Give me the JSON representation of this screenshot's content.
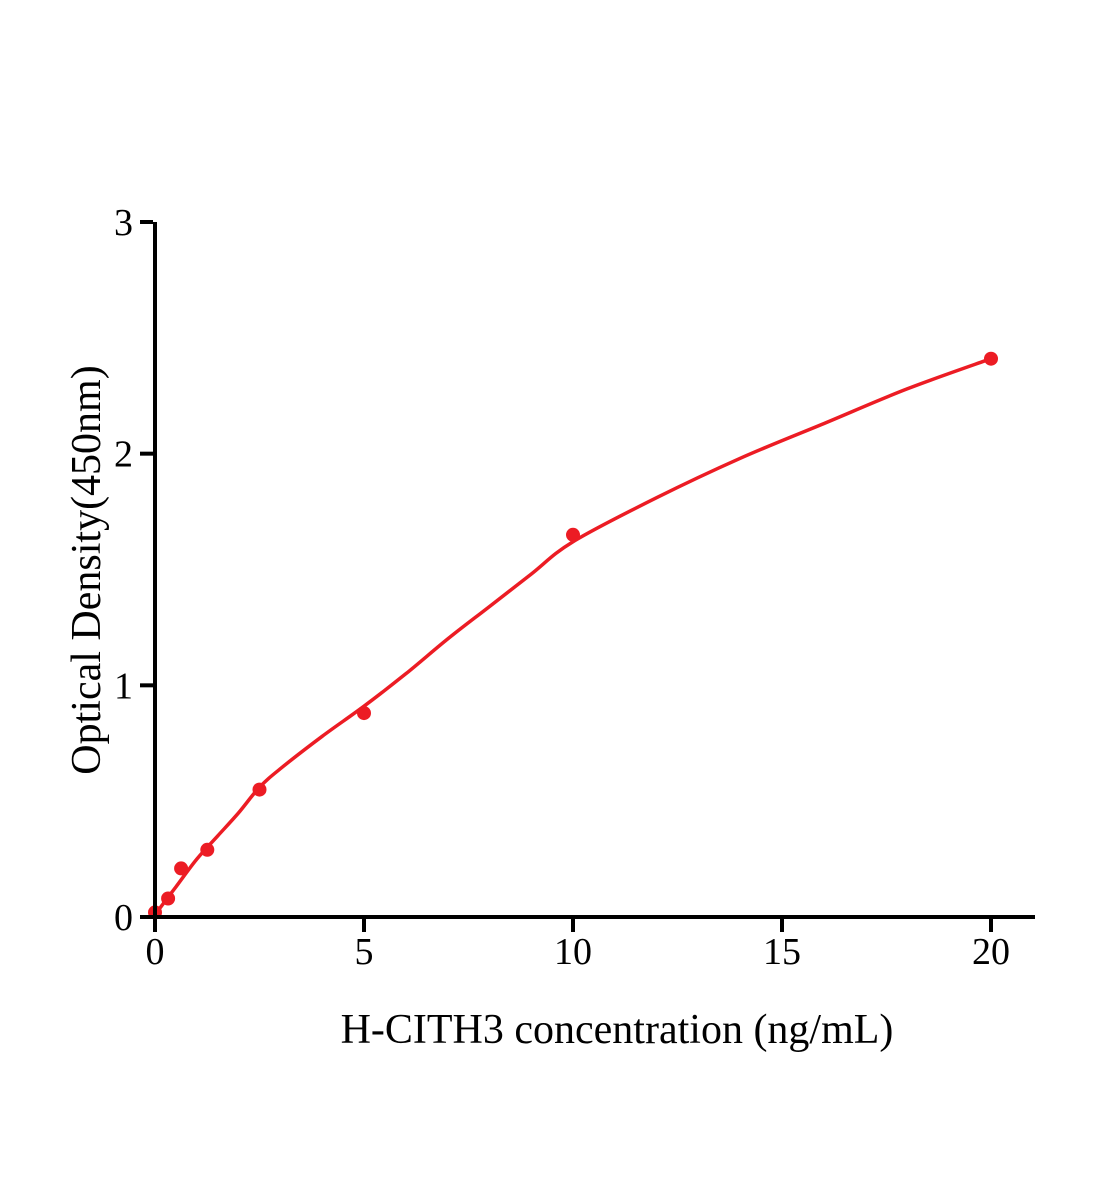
{
  "chart_data": {
    "type": "scatter",
    "subtype": "elisa-standard-curve",
    "title": "",
    "xlabel": "H-CITH3 concentration (ng/mL)",
    "ylabel": "Optical Density(450nm)",
    "xlim": [
      0,
      21
    ],
    "ylim": [
      0,
      3
    ],
    "x_ticks": [
      0,
      5,
      10,
      15,
      20
    ],
    "y_ticks": [
      0,
      1,
      2,
      3
    ],
    "grid": false,
    "legend": null,
    "marker": "filled-circle",
    "points": [
      {
        "x": 0,
        "y": 0.02
      },
      {
        "x": 0.313,
        "y": 0.08
      },
      {
        "x": 0.625,
        "y": 0.21
      },
      {
        "x": 1.25,
        "y": 0.29
      },
      {
        "x": 2.5,
        "y": 0.55
      },
      {
        "x": 5,
        "y": 0.88
      },
      {
        "x": 10,
        "y": 1.65
      },
      {
        "x": 20,
        "y": 2.41
      }
    ],
    "fit_curve": [
      [
        0,
        0.01
      ],
      [
        0.5,
        0.13
      ],
      [
        1,
        0.25
      ],
      [
        1.5,
        0.35
      ],
      [
        2,
        0.45
      ],
      [
        2.5,
        0.56
      ],
      [
        3,
        0.64
      ],
      [
        4,
        0.78
      ],
      [
        5,
        0.91
      ],
      [
        6,
        1.05
      ],
      [
        7,
        1.2
      ],
      [
        8,
        1.34
      ],
      [
        9,
        1.48
      ],
      [
        10,
        1.62
      ],
      [
        12,
        1.81
      ],
      [
        14,
        1.98
      ],
      [
        16,
        2.13
      ],
      [
        18,
        2.28
      ],
      [
        20,
        2.41
      ]
    ],
    "colors": {
      "curve": "#ec1c24",
      "marker": "#ec1c24",
      "axis": "#000000",
      "text": "#000000",
      "background": "#ffffff"
    }
  }
}
